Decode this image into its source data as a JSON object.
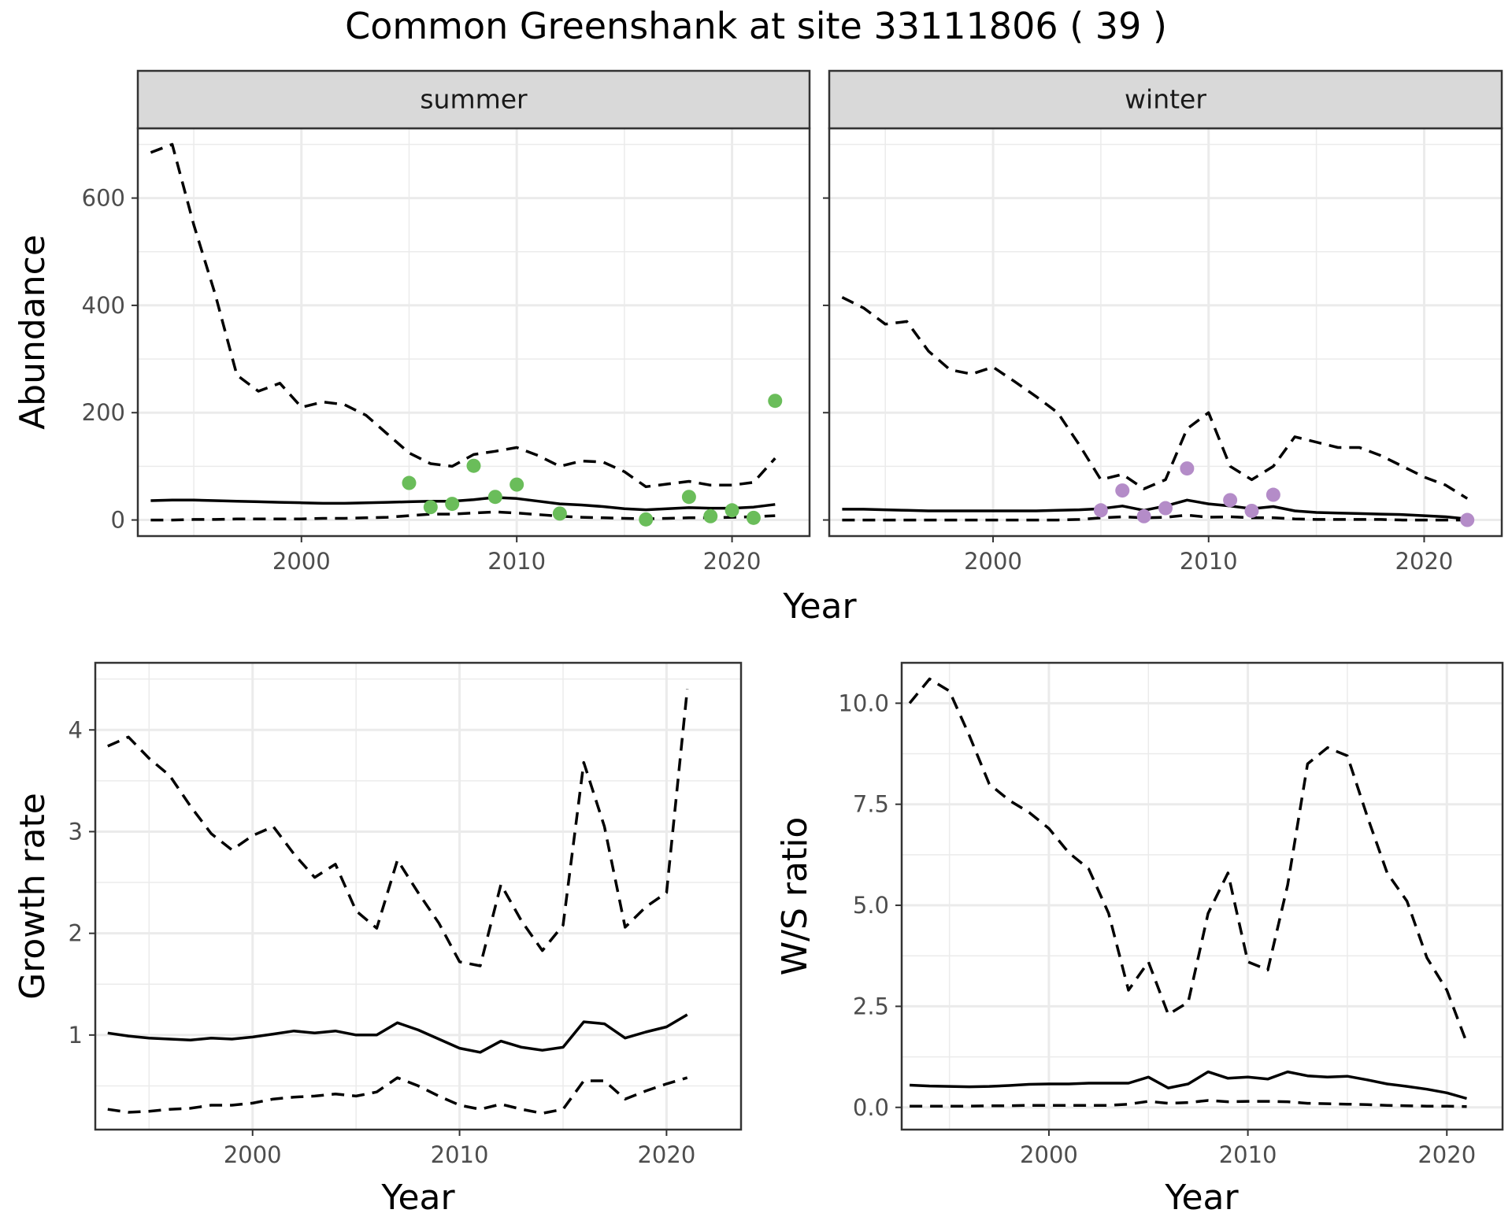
{
  "title": "Common Greenshank at site 33111806 ( 39 )",
  "chart_data": [
    {
      "type": "line",
      "facet": "summer",
      "xlabel": "Year",
      "ylabel": "Abundance",
      "xlim": [
        1992.4,
        2023.6
      ],
      "ylim": [
        -30,
        730
      ],
      "xticks": [
        2000,
        2010,
        2020
      ],
      "yticks": [
        0,
        200,
        400,
        600
      ],
      "point_color": "#6abd5a",
      "series": [
        {
          "style": "solid",
          "x": [
            1993,
            1994,
            1995,
            1996,
            1997,
            1998,
            1999,
            2000,
            2001,
            2002,
            2003,
            2004,
            2005,
            2006,
            2007,
            2008,
            2009,
            2010,
            2011,
            2012,
            2013,
            2014,
            2015,
            2016,
            2017,
            2018,
            2019,
            2020,
            2021,
            2022
          ],
          "values": [
            36,
            37,
            37,
            36,
            35,
            34,
            33,
            32,
            31,
            31,
            32,
            33,
            34,
            35,
            35,
            38,
            42,
            40,
            35,
            30,
            28,
            25,
            21,
            19,
            21,
            23,
            22,
            22,
            24,
            29
          ]
        },
        {
          "style": "dashed",
          "x": [
            1993,
            1994,
            1995,
            1996,
            1997,
            1998,
            1999,
            2000,
            2001,
            2002,
            2003,
            2004,
            2005,
            2006,
            2007,
            2008,
            2009,
            2010,
            2011,
            2012,
            2013,
            2014,
            2015,
            2016,
            2017,
            2018,
            2019,
            2020,
            2021,
            2022
          ],
          "values": [
            685,
            700,
            550,
            420,
            270,
            240,
            255,
            210,
            220,
            215,
            195,
            160,
            125,
            105,
            100,
            122,
            128,
            135,
            120,
            100,
            110,
            108,
            90,
            62,
            67,
            72,
            65,
            65,
            70,
            115
          ]
        },
        {
          "style": "dashed",
          "x": [
            1993,
            1994,
            1995,
            1996,
            1997,
            1998,
            1999,
            2000,
            2001,
            2002,
            2003,
            2004,
            2005,
            2006,
            2007,
            2008,
            2009,
            2010,
            2011,
            2012,
            2013,
            2014,
            2015,
            2016,
            2017,
            2018,
            2019,
            2020,
            2021,
            2022
          ],
          "values": [
            0,
            0,
            1,
            1,
            2,
            2,
            2,
            2,
            3,
            3,
            4,
            5,
            8,
            11,
            11,
            13,
            15,
            13,
            10,
            7,
            5,
            4,
            3,
            2,
            3,
            4,
            4,
            5,
            6,
            8
          ]
        }
      ],
      "points": {
        "x": [
          2005,
          2006,
          2007,
          2008,
          2009,
          2010,
          2012,
          2016,
          2018,
          2019,
          2020,
          2021,
          2022
        ],
        "values": [
          69,
          24,
          30,
          101,
          43,
          66,
          12,
          1,
          43,
          7,
          18,
          4,
          222
        ]
      }
    },
    {
      "type": "line",
      "facet": "winter",
      "xlabel": "Year",
      "ylabel": "Abundance",
      "xlim": [
        1992.4,
        2023.6
      ],
      "ylim": [
        -30,
        730
      ],
      "xticks": [
        2000,
        2010,
        2020
      ],
      "yticks": [
        0,
        200,
        400,
        600
      ],
      "point_color": "#b48cc8",
      "series": [
        {
          "style": "solid",
          "x": [
            1993,
            1994,
            1995,
            1996,
            1997,
            1998,
            1999,
            2000,
            2001,
            2002,
            2003,
            2004,
            2005,
            2006,
            2007,
            2008,
            2009,
            2010,
            2011,
            2012,
            2013,
            2014,
            2015,
            2016,
            2017,
            2018,
            2019,
            2020,
            2021,
            2022
          ],
          "values": [
            20,
            20,
            19,
            18,
            17,
            17,
            17,
            17,
            17,
            17,
            18,
            19,
            21,
            26,
            18,
            26,
            37,
            30,
            26,
            21,
            25,
            17,
            14,
            13,
            12,
            11,
            10,
            8,
            6,
            2
          ]
        },
        {
          "style": "dashed",
          "x": [
            1993,
            1994,
            1995,
            1996,
            1997,
            1998,
            1999,
            2000,
            2001,
            2002,
            2003,
            2004,
            2005,
            2006,
            2007,
            2008,
            2009,
            2010,
            2011,
            2012,
            2013,
            2014,
            2015,
            2016,
            2017,
            2018,
            2019,
            2020,
            2021,
            2022
          ],
          "values": [
            415,
            395,
            365,
            370,
            315,
            280,
            272,
            285,
            258,
            230,
            200,
            140,
            75,
            85,
            58,
            75,
            170,
            200,
            100,
            75,
            100,
            155,
            145,
            135,
            135,
            120,
            100,
            80,
            65,
            40
          ]
        },
        {
          "style": "dashed",
          "x": [
            1993,
            1994,
            1995,
            1996,
            1997,
            1998,
            1999,
            2000,
            2001,
            2002,
            2003,
            2004,
            2005,
            2006,
            2007,
            2008,
            2009,
            2010,
            2011,
            2012,
            2013,
            2014,
            2015,
            2016,
            2017,
            2018,
            2019,
            2020,
            2021,
            2022
          ],
          "values": [
            0,
            0,
            0,
            0,
            0,
            0,
            0,
            0,
            0,
            0,
            0,
            1,
            4,
            6,
            4,
            5,
            9,
            5,
            6,
            4,
            4,
            2,
            1,
            1,
            1,
            1,
            0,
            0,
            0,
            0
          ]
        }
      ],
      "points": {
        "x": [
          2005,
          2006,
          2007,
          2008,
          2009,
          2011,
          2012,
          2013,
          2022
        ],
        "values": [
          18,
          55,
          7,
          22,
          96,
          37,
          17,
          47,
          0
        ]
      }
    },
    {
      "type": "line",
      "xlabel": "Year",
      "ylabel": "Growth rate",
      "xlim": [
        1992.4,
        2023.6
      ],
      "ylim": [
        0.07,
        4.66
      ],
      "xticks": [
        2000,
        2010,
        2020
      ],
      "yticks": [
        1,
        2,
        3,
        4
      ],
      "series": [
        {
          "style": "solid",
          "x": [
            1993,
            1994,
            1995,
            1996,
            1997,
            1998,
            1999,
            2000,
            2001,
            2002,
            2003,
            2004,
            2005,
            2006,
            2007,
            2008,
            2009,
            2010,
            2011,
            2012,
            2013,
            2014,
            2015,
            2016,
            2017,
            2018,
            2019,
            2020,
            2021
          ],
          "values": [
            1.02,
            0.99,
            0.97,
            0.96,
            0.95,
            0.97,
            0.96,
            0.98,
            1.01,
            1.04,
            1.02,
            1.04,
            1.0,
            1.0,
            1.12,
            1.05,
            0.96,
            0.87,
            0.83,
            0.94,
            0.88,
            0.85,
            0.88,
            1.13,
            1.11,
            0.97,
            1.03,
            1.08,
            1.2
          ]
        },
        {
          "style": "dashed",
          "x": [
            1993,
            1994,
            1995,
            1996,
            1997,
            1998,
            1999,
            2000,
            2001,
            2002,
            2003,
            2004,
            2005,
            2006,
            2007,
            2008,
            2009,
            2010,
            2011,
            2012,
            2013,
            2014,
            2015,
            2016,
            2017,
            2018,
            2019,
            2020,
            2021
          ],
          "values": [
            3.84,
            3.93,
            3.72,
            3.55,
            3.25,
            2.98,
            2.82,
            2.96,
            3.05,
            2.78,
            2.55,
            2.68,
            2.22,
            2.05,
            2.72,
            2.4,
            2.1,
            1.72,
            1.68,
            2.48,
            2.12,
            1.83,
            2.08,
            3.68,
            3.05,
            2.06,
            2.26,
            2.4,
            4.4
          ]
        },
        {
          "style": "dashed",
          "x": [
            1993,
            1994,
            1995,
            1996,
            1997,
            1998,
            1999,
            2000,
            2001,
            2002,
            2003,
            2004,
            2005,
            2006,
            2007,
            2008,
            2009,
            2010,
            2011,
            2012,
            2013,
            2014,
            2015,
            2016,
            2017,
            2018,
            2019,
            2020,
            2021
          ],
          "values": [
            0.27,
            0.24,
            0.25,
            0.27,
            0.28,
            0.31,
            0.31,
            0.33,
            0.37,
            0.39,
            0.4,
            0.42,
            0.4,
            0.44,
            0.58,
            0.5,
            0.4,
            0.31,
            0.27,
            0.32,
            0.27,
            0.23,
            0.27,
            0.55,
            0.55,
            0.37,
            0.45,
            0.52,
            0.58
          ]
        }
      ]
    },
    {
      "type": "line",
      "xlabel": "Year",
      "ylabel": "W/S ratio",
      "xlim": [
        1992.6,
        2022.8
      ],
      "ylim": [
        -0.55,
        11.0
      ],
      "xticks": [
        2000,
        2010,
        2020
      ],
      "yticks": [
        0.0,
        2.5,
        5.0,
        7.5,
        10.0
      ],
      "ytick_labels": [
        "0.0",
        "2.5",
        "5.0",
        "7.5",
        "10.0"
      ],
      "series": [
        {
          "style": "solid",
          "x": [
            1993,
            1994,
            1995,
            1996,
            1997,
            1998,
            1999,
            2000,
            2001,
            2002,
            2003,
            2004,
            2005,
            2006,
            2007,
            2008,
            2009,
            2010,
            2011,
            2012,
            2013,
            2014,
            2015,
            2016,
            2017,
            2018,
            2019,
            2020,
            2021
          ],
          "values": [
            0.55,
            0.53,
            0.52,
            0.51,
            0.52,
            0.54,
            0.57,
            0.58,
            0.58,
            0.6,
            0.6,
            0.6,
            0.75,
            0.48,
            0.58,
            0.88,
            0.72,
            0.75,
            0.7,
            0.88,
            0.78,
            0.75,
            0.77,
            0.68,
            0.58,
            0.52,
            0.45,
            0.36,
            0.22
          ]
        },
        {
          "style": "dashed",
          "x": [
            1993,
            1994,
            1995,
            1996,
            1997,
            1998,
            1999,
            2000,
            2001,
            2002,
            2003,
            2004,
            2005,
            2006,
            2007,
            2008,
            2009,
            2010,
            2011,
            2012,
            2013,
            2014,
            2015,
            2016,
            2017,
            2018,
            2019,
            2020,
            2021
          ],
          "values": [
            10.0,
            10.6,
            10.3,
            9.2,
            8.0,
            7.6,
            7.3,
            6.9,
            6.3,
            5.9,
            4.8,
            2.9,
            3.6,
            2.3,
            2.6,
            4.8,
            5.8,
            3.6,
            3.4,
            5.5,
            8.5,
            8.9,
            8.7,
            7.2,
            5.8,
            5.1,
            3.7,
            2.9,
            1.6
          ]
        },
        {
          "style": "dashed",
          "x": [
            1993,
            1994,
            1995,
            1996,
            1997,
            1998,
            1999,
            2000,
            2001,
            2002,
            2003,
            2004,
            2005,
            2006,
            2007,
            2008,
            2009,
            2010,
            2011,
            2012,
            2013,
            2014,
            2015,
            2016,
            2017,
            2018,
            2019,
            2020,
            2021
          ],
          "values": [
            0.03,
            0.03,
            0.03,
            0.03,
            0.04,
            0.04,
            0.05,
            0.05,
            0.05,
            0.05,
            0.05,
            0.08,
            0.15,
            0.1,
            0.12,
            0.17,
            0.14,
            0.15,
            0.15,
            0.14,
            0.1,
            0.09,
            0.08,
            0.07,
            0.05,
            0.04,
            0.03,
            0.03,
            0.02
          ]
        }
      ]
    }
  ]
}
